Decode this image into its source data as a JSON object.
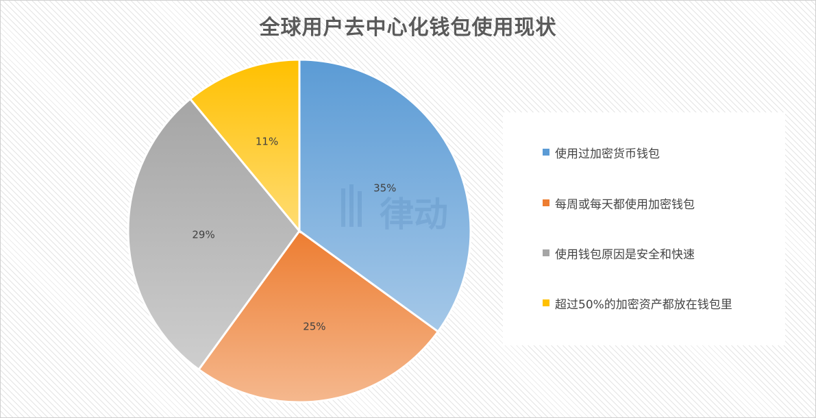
{
  "chart_data": {
    "type": "pie",
    "title": "全球用户去中心化钱包使用现状",
    "categories": [
      "使用过加密货币钱包",
      "每周或每天都使用加密钱包",
      "使用钱包原因是安全和快速",
      "超过50%的加密资产都放在钱包里"
    ],
    "values": [
      35,
      25,
      29,
      11
    ],
    "labels": [
      "35%",
      "25%",
      "29%",
      "11%"
    ],
    "colors": [
      "#5b9bd5",
      "#ed7d31",
      "#a5a5a5",
      "#ffc000"
    ],
    "legend_position": "right"
  },
  "watermark": {
    "text": "律动"
  }
}
